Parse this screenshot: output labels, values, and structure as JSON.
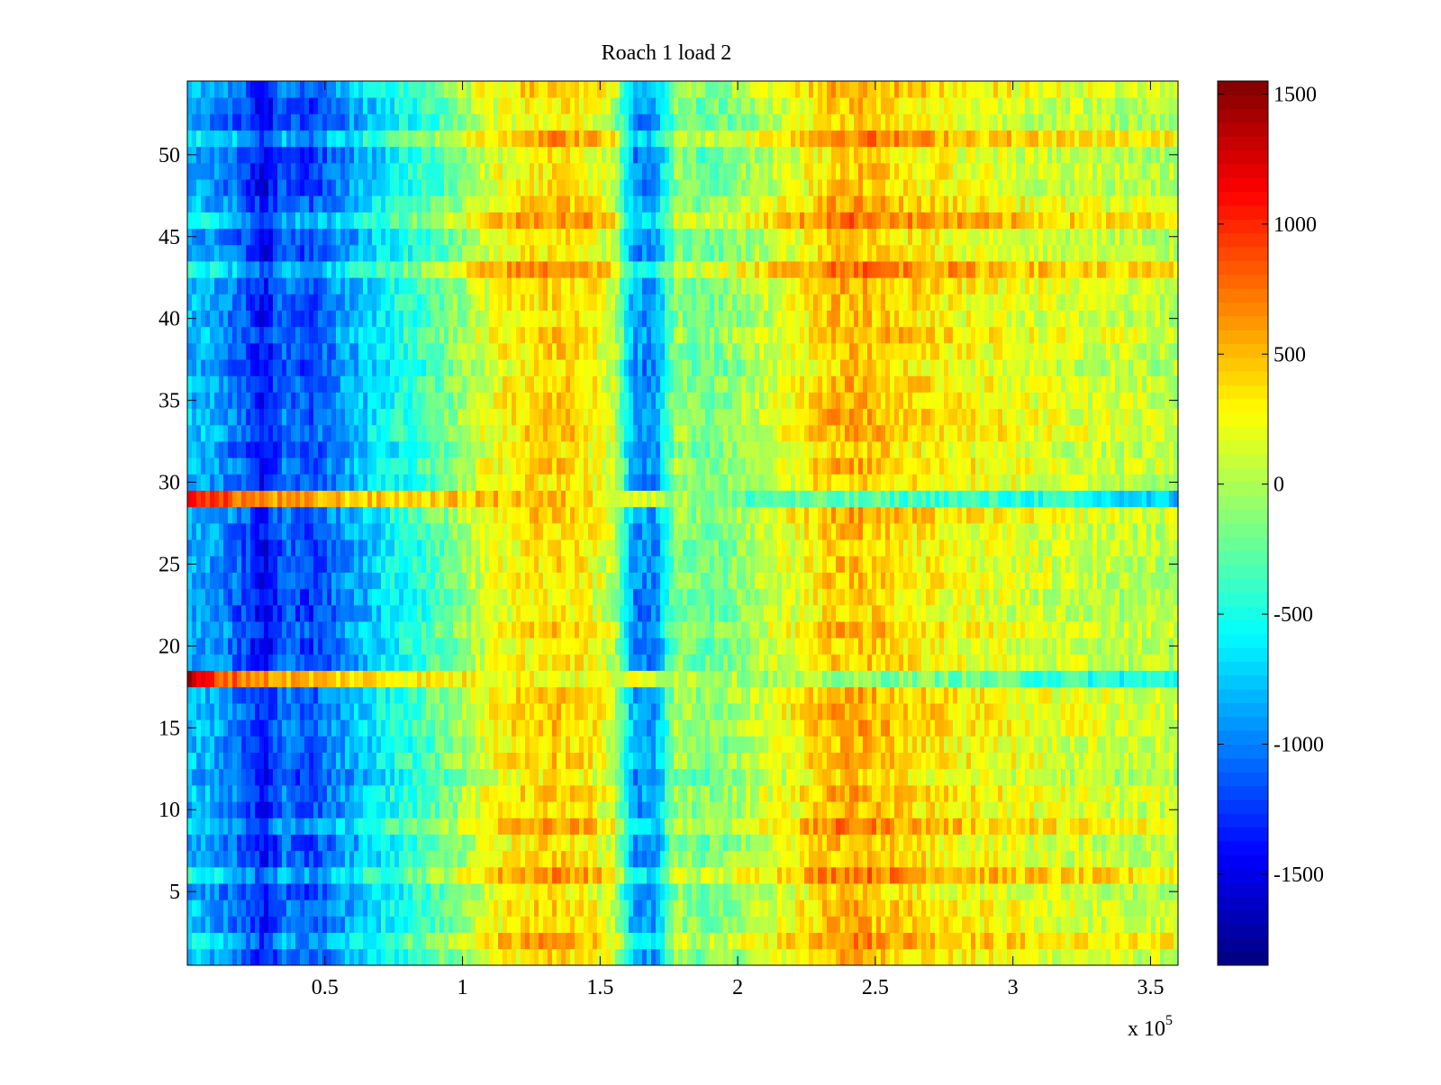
{
  "chart_data": {
    "type": "heatmap",
    "title": "Roach 1 load 2",
    "xlabel": "",
    "ylabel": "",
    "x_multiplier_label": "x 10",
    "x_multiplier_exponent": "5",
    "xlim": [
      0,
      360000
    ],
    "ylim": [
      0.5,
      54.5
    ],
    "rows": 54,
    "x_ticks": [
      {
        "value": 50000,
        "label": "0.5"
      },
      {
        "value": 100000,
        "label": "1"
      },
      {
        "value": 150000,
        "label": "1.5"
      },
      {
        "value": 200000,
        "label": "2"
      },
      {
        "value": 250000,
        "label": "2.5"
      },
      {
        "value": 300000,
        "label": "3"
      },
      {
        "value": 350000,
        "label": "3.5"
      }
    ],
    "y_ticks": [
      {
        "value": 5,
        "label": "5"
      },
      {
        "value": 10,
        "label": "10"
      },
      {
        "value": 15,
        "label": "15"
      },
      {
        "value": 20,
        "label": "20"
      },
      {
        "value": 25,
        "label": "25"
      },
      {
        "value": 30,
        "label": "30"
      },
      {
        "value": 35,
        "label": "35"
      },
      {
        "value": 40,
        "label": "40"
      },
      {
        "value": 45,
        "label": "45"
      },
      {
        "value": 50,
        "label": "50"
      }
    ],
    "colorbar": {
      "colormap": "jet",
      "clim": [
        -1850,
        1550
      ],
      "ticks": [
        {
          "value": 1500,
          "label": "1500"
        },
        {
          "value": 1000,
          "label": "1000"
        },
        {
          "value": 500,
          "label": "500"
        },
        {
          "value": 0,
          "label": "0"
        },
        {
          "value": -500,
          "label": "-500"
        },
        {
          "value": -1000,
          "label": "-1000"
        },
        {
          "value": -1500,
          "label": "-1500"
        }
      ]
    },
    "column_profile": {
      "x": [
        0,
        10000,
        20000,
        28000,
        35000,
        45000,
        55000,
        65000,
        75000,
        85000,
        95000,
        105000,
        115000,
        125000,
        135000,
        145000,
        155000,
        162000,
        170000,
        178000,
        185000,
        195000,
        205000,
        215000,
        225000,
        235000,
        245000,
        255000,
        265000,
        275000,
        285000,
        300000,
        320000,
        340000,
        360000
      ],
      "values": [
        -800,
        -900,
        -1100,
        -1450,
        -1050,
        -1200,
        -950,
        -750,
        -550,
        -400,
        -200,
        80,
        250,
        350,
        400,
        320,
        80,
        -900,
        -950,
        -50,
        -200,
        -150,
        0,
        150,
        300,
        480,
        500,
        420,
        350,
        300,
        250,
        200,
        120,
        80,
        50
      ]
    },
    "row_adjustments": [
      {
        "row": 18,
        "x_profile": [
          1350,
          900,
          600,
          400,
          300,
          300,
          200,
          150,
          100,
          0,
          -100,
          -200,
          -400,
          -500,
          -500
        ],
        "note_x": [
          0,
          10000,
          30000,
          60000,
          90000,
          120000,
          140000,
          160000,
          180000,
          200000,
          240000,
          280000,
          320000,
          340000,
          360000
        ]
      },
      {
        "row": 29,
        "x_profile": [
          1300,
          900,
          600,
          450,
          400,
          500,
          450,
          200,
          0,
          -300,
          -300,
          -400,
          -500,
          -700,
          -800
        ],
        "note_x": [
          0,
          10000,
          30000,
          60000,
          90000,
          120000,
          140000,
          160000,
          180000,
          200000,
          240000,
          280000,
          320000,
          340000,
          360000
        ]
      },
      {
        "row": 43,
        "offset": 250
      },
      {
        "row": 46,
        "offset": 250
      },
      {
        "row": 51,
        "offset": 200
      },
      {
        "row": 9,
        "offset": 200
      },
      {
        "row": 6,
        "offset": 250
      },
      {
        "row": 2,
        "offset": 150
      }
    ]
  }
}
